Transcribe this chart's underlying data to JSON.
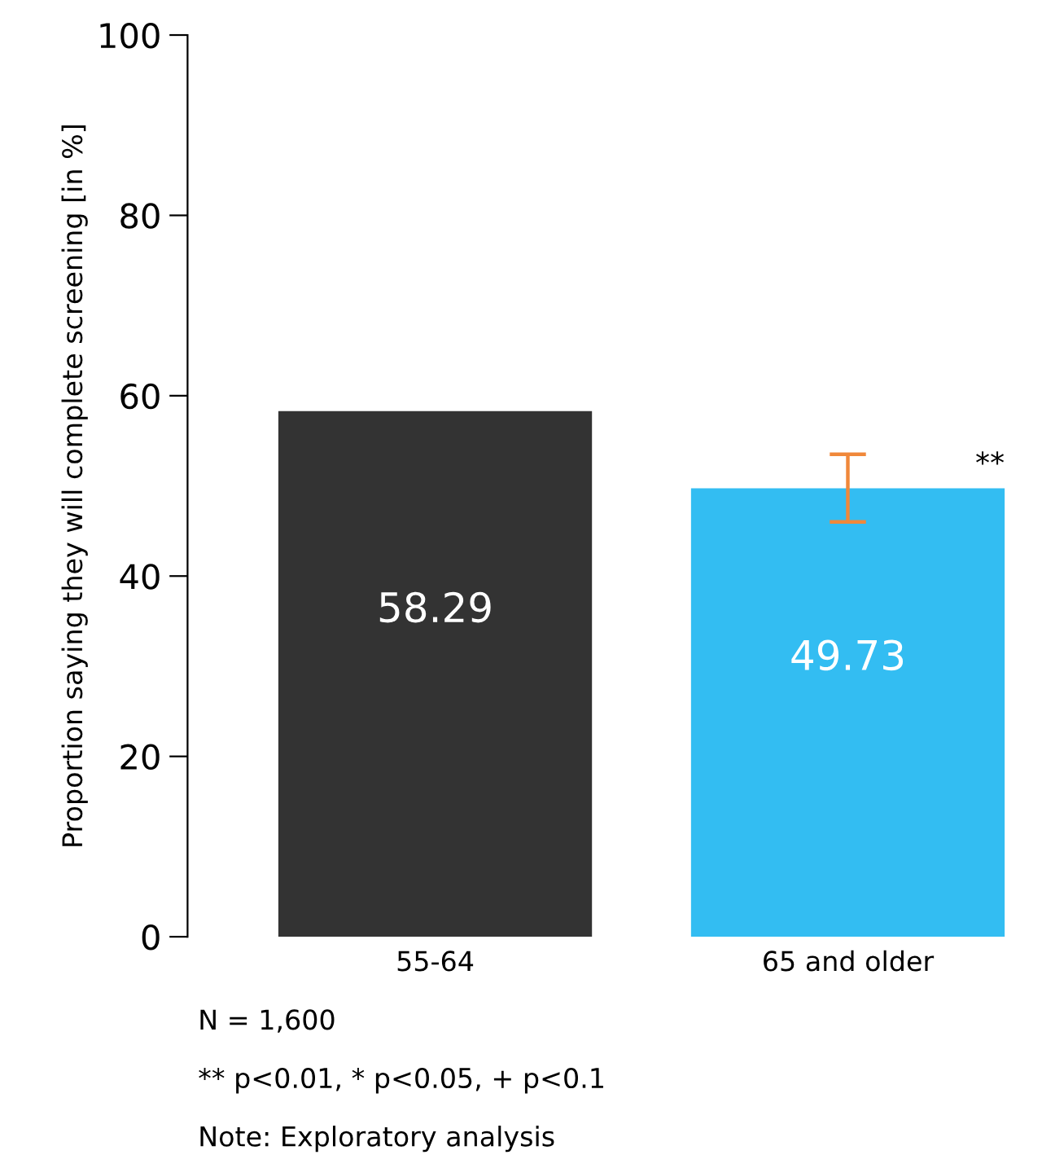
{
  "chart_data": {
    "type": "bar",
    "ylabel": "Proportion saying they will complete screening [in %]",
    "categories": [
      "55-64",
      "65 and older"
    ],
    "values": [
      58.29,
      49.73
    ],
    "colors": [
      "#333333",
      "#33bdf2"
    ],
    "errors": [
      null,
      [
        46.0,
        53.5
      ]
    ],
    "data_labels": true,
    "ylim": [
      0,
      100
    ],
    "yticks": [
      0,
      20,
      40,
      60,
      80,
      100
    ],
    "grid": false,
    "legend": false,
    "annotations": [
      "**",
      "N = 1,600",
      "** p<0.01, * p<0.05, + p<0.1",
      "Note: Exploratory analysis"
    ]
  }
}
